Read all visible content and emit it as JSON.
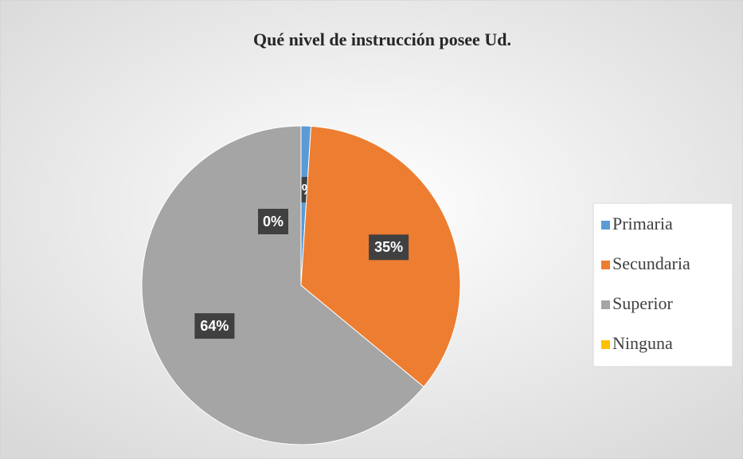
{
  "chart_data": {
    "type": "pie",
    "title": "Qué nivel de instrucción  posee Ud.",
    "categories": [
      "Primaria",
      "Secundaria",
      "Superior",
      "Ninguna"
    ],
    "values": [
      1,
      35,
      64,
      0
    ],
    "value_labels": [
      "1%",
      "35%",
      "64%",
      "0%"
    ],
    "colors": [
      "#5b9bd5",
      "#ed7d31",
      "#a5a5a5",
      "#ffc000"
    ],
    "legend": "right"
  }
}
